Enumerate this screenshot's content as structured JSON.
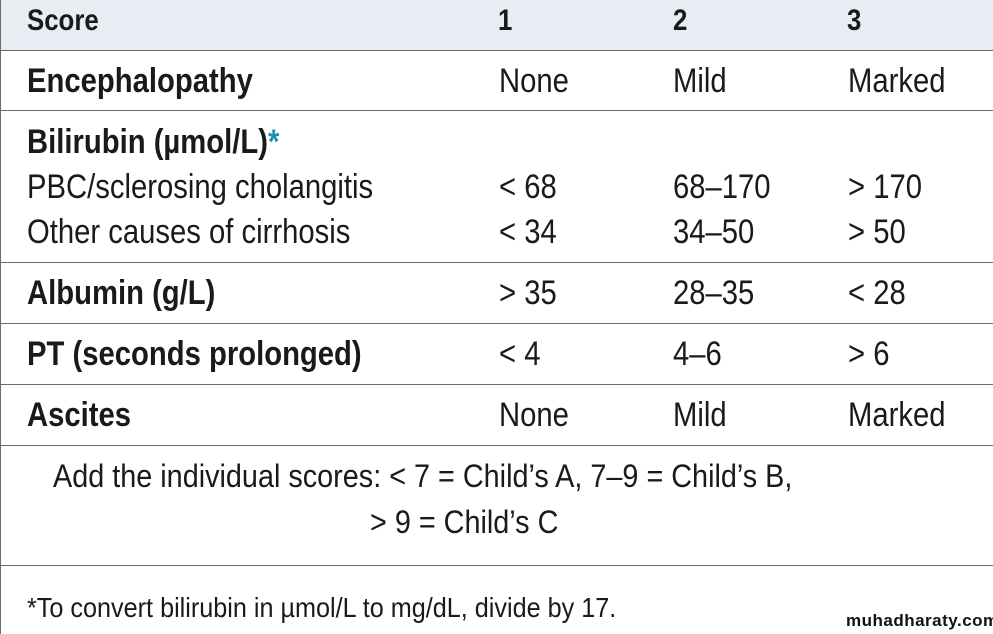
{
  "table": {
    "header": {
      "label": "Score",
      "col1": "1",
      "col2": "2",
      "col3": "3"
    },
    "rows": {
      "encephalopathy": {
        "label": "Encephalopathy",
        "v1": "None",
        "v2": "Mild",
        "v3": "Marked"
      },
      "bilirubin": {
        "label": "Bilirubin (µmol/L)",
        "asterisk": "*",
        "pbc": {
          "label": "PBC/sclerosing cholangitis",
          "v1": "< 68",
          "v2": "68–170",
          "v3": "> 170"
        },
        "other": {
          "label": "Other causes of cirrhosis",
          "v1": "< 34",
          "v2": "34–50",
          "v3": "> 50"
        }
      },
      "albumin": {
        "label": "Albumin (g/L)",
        "v1": "> 35",
        "v2": "28–35",
        "v3": "< 28"
      },
      "pt": {
        "label": "PT (seconds prolonged)",
        "v1": "< 4",
        "v2": "4–6",
        "v3": "> 6"
      },
      "ascites": {
        "label": "Ascites",
        "v1": "None",
        "v2": "Mild",
        "v3": "Marked"
      }
    },
    "summary": {
      "line1": "Add the individual scores: < 7 = Child’s A, 7–9 = Child’s B,",
      "line2": "> 9 = Child’s C"
    },
    "footnote": "*To convert bilirubin in µmol/L to mg/dL, divide by 17."
  },
  "watermark": "muhadharaty.com"
}
